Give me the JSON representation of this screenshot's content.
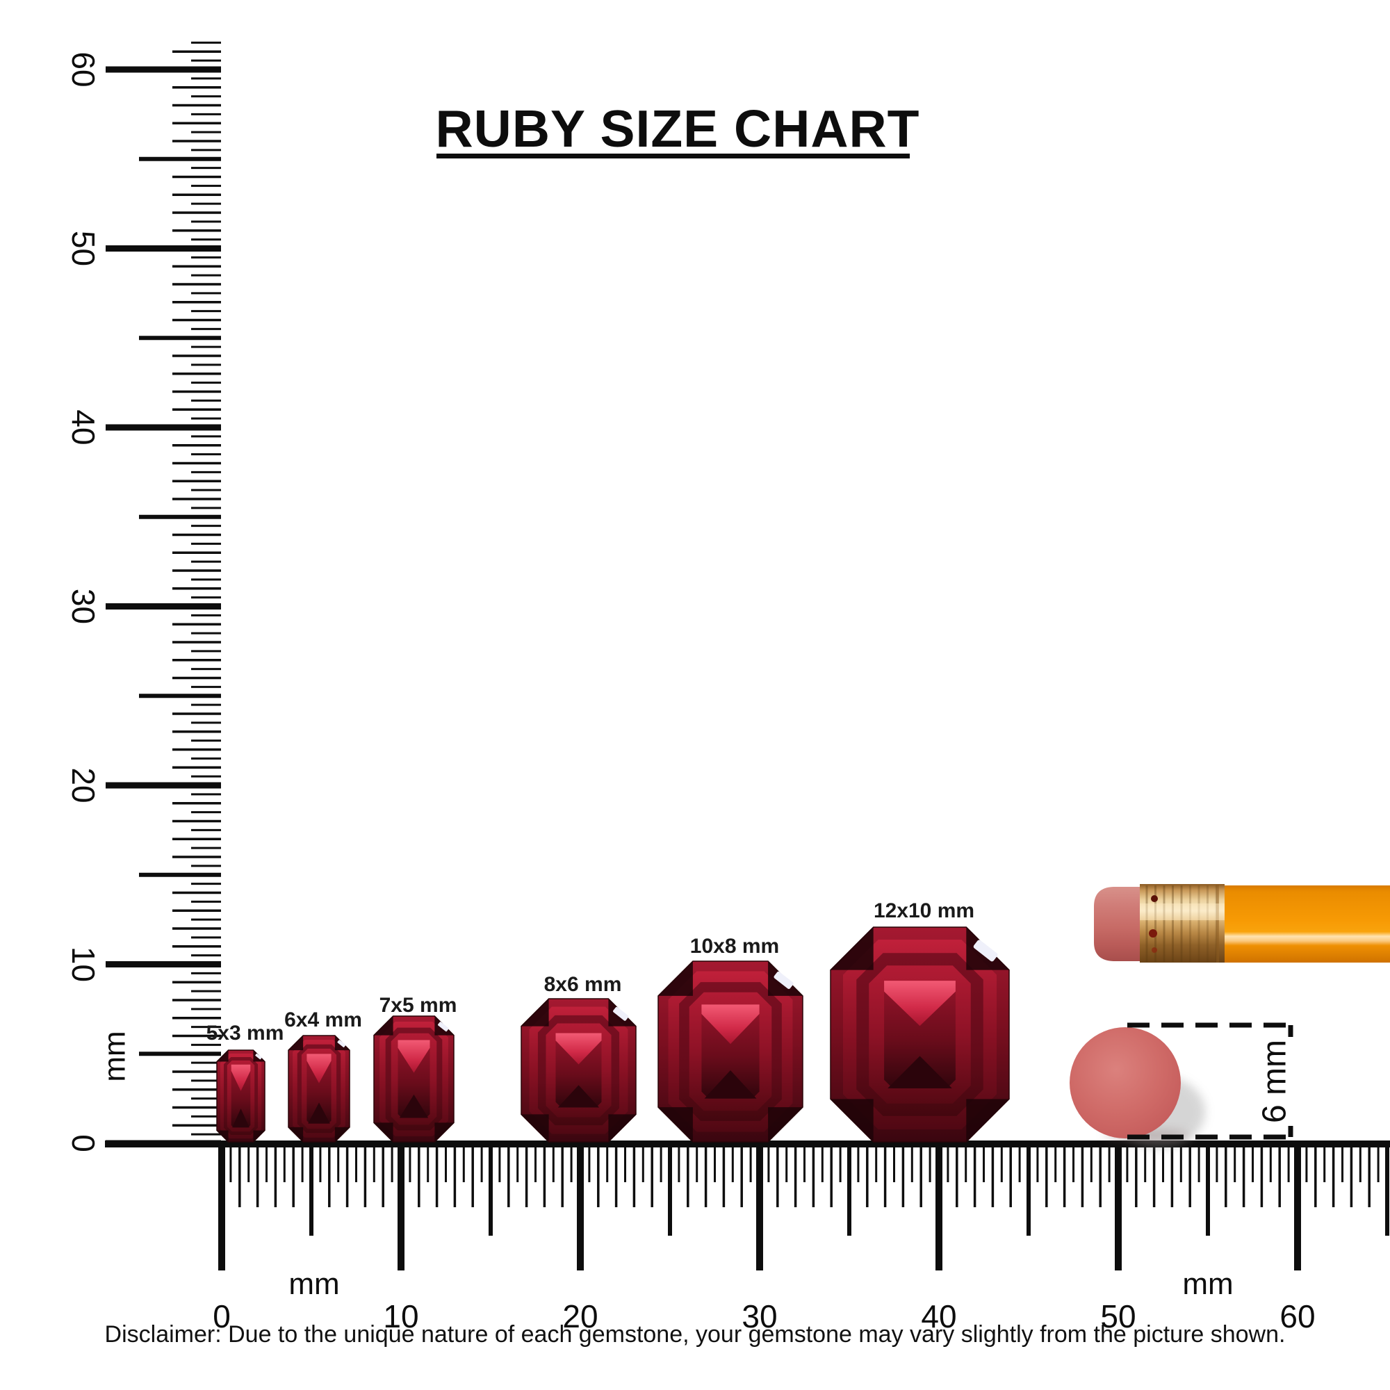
{
  "title": {
    "text": "RUBY SIZE CHART"
  },
  "disclaimer": "Disclaimer: Due to the unique nature of each gemstone, your gemstone may vary slightly from the picture shown.",
  "colors": {
    "ink": "#0d0d0d",
    "ruby_bright": "#c0203a",
    "ruby_mid": "#7c0f20",
    "ruby_dark": "#3a060f",
    "ruby_highlight": "#f25a74",
    "sparkle": "#eff0fa",
    "eraser_dot": "#cf6a67",
    "pencil_orange": "#f79a04",
    "pencil_ferrule_gold": "#d9af6e",
    "pencil_eraser_pink": "#c76b66"
  },
  "chart_data": {
    "type": "size-comparison-diagram",
    "title": "RUBY SIZE CHART",
    "unit": "mm",
    "gem_shape": "emerald-cut ruby",
    "gems": [
      {
        "label": "5x3 mm",
        "length_mm": 5,
        "width_mm": 3
      },
      {
        "label": "6x4 mm",
        "length_mm": 6,
        "width_mm": 4
      },
      {
        "label": "7x5 mm",
        "length_mm": 7,
        "width_mm": 5
      },
      {
        "label": "8x6 mm",
        "length_mm": 8,
        "width_mm": 6
      },
      {
        "label": "10x8 mm",
        "length_mm": 10,
        "width_mm": 8
      },
      {
        "label": "12x10 mm",
        "length_mm": 12,
        "width_mm": 10
      }
    ],
    "vertical_ruler": {
      "min_mm": 0,
      "max_mm": 60,
      "minor_step_mm": 0.5,
      "major_step_mm": 10,
      "labels": [
        "60",
        "50",
        "40",
        "30",
        "20",
        "10",
        "0"
      ],
      "unit_label": "mm"
    },
    "horizontal_ruler": {
      "min_mm": 0,
      "max_mm": 60,
      "minor_step_mm": 0.5,
      "major_step_mm": 10,
      "labels": [
        "0",
        "10",
        "20",
        "30",
        "40",
        "50",
        "60"
      ],
      "unit_labels": [
        "mm",
        "mm"
      ]
    },
    "reference_objects": {
      "pencil": "pencil eraser end",
      "eraser_dot_diameter_label": "6 mm",
      "eraser_dot_diameter_mm": 6
    }
  }
}
